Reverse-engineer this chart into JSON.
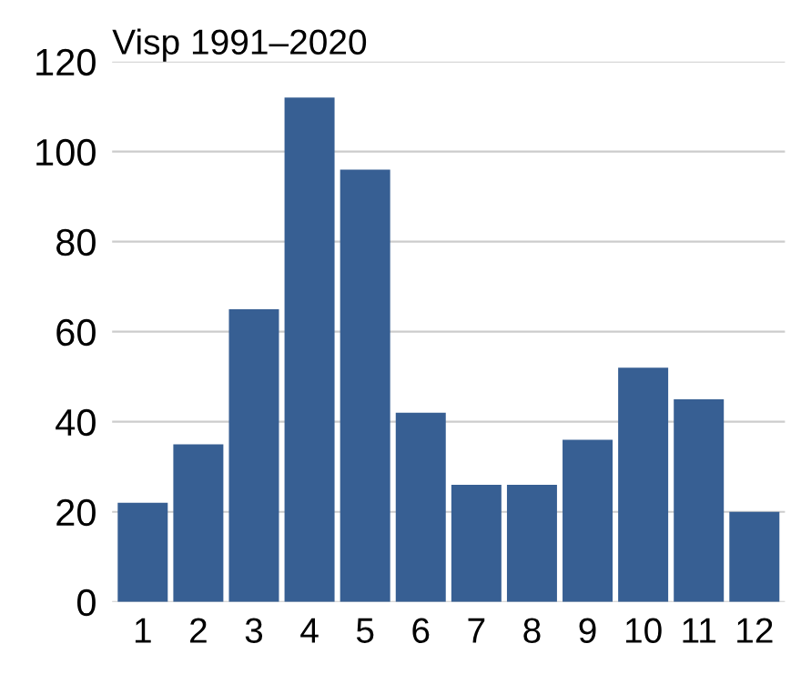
{
  "chart_data": {
    "type": "bar",
    "title": "Visp 1991–2020",
    "categories": [
      "1",
      "2",
      "3",
      "4",
      "5",
      "6",
      "7",
      "8",
      "9",
      "10",
      "11",
      "12"
    ],
    "values": [
      22,
      35,
      65,
      112,
      96,
      42,
      26,
      26,
      36,
      52,
      45,
      20
    ],
    "color": "#375f93",
    "ylim": [
      0,
      120
    ],
    "yticks": [
      0,
      20,
      40,
      60,
      80,
      100,
      120
    ],
    "grid": "y"
  }
}
